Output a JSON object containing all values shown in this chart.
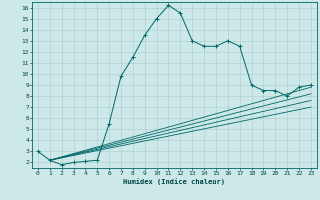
{
  "xlabel": "Humidex (Indice chaleur)",
  "bg_color": "#cce8e8",
  "grid_color": "#aacccc",
  "line_color": "#006666",
  "xlim": [
    -0.5,
    23.5
  ],
  "ylim": [
    1.5,
    16.5
  ],
  "xticks": [
    0,
    1,
    2,
    3,
    4,
    5,
    6,
    7,
    8,
    9,
    10,
    11,
    12,
    13,
    14,
    15,
    16,
    17,
    18,
    19,
    20,
    21,
    22,
    23
  ],
  "yticks": [
    2,
    3,
    4,
    5,
    6,
    7,
    8,
    9,
    10,
    11,
    12,
    13,
    14,
    15,
    16
  ],
  "main_x": [
    0,
    1,
    2,
    3,
    4,
    5,
    6,
    7,
    8,
    9,
    10,
    11,
    12,
    13,
    14,
    15,
    16,
    17,
    18,
    19,
    20,
    21,
    22,
    23
  ],
  "main_y": [
    3.0,
    2.2,
    1.8,
    2.0,
    2.1,
    2.2,
    5.5,
    9.8,
    11.5,
    13.5,
    15.0,
    16.2,
    15.5,
    13.0,
    12.5,
    12.5,
    13.0,
    12.5,
    9.0,
    8.5,
    8.5,
    8.0,
    8.8,
    9.0
  ],
  "ref_lines": [
    {
      "x": [
        1,
        23
      ],
      "y": [
        2.2,
        8.8
      ]
    },
    {
      "x": [
        1,
        23
      ],
      "y": [
        2.2,
        8.2
      ]
    },
    {
      "x": [
        1,
        23
      ],
      "y": [
        2.2,
        7.6
      ]
    },
    {
      "x": [
        1,
        23
      ],
      "y": [
        2.2,
        7.0
      ]
    }
  ],
  "figsize": [
    3.2,
    2.0
  ],
  "dpi": 100
}
